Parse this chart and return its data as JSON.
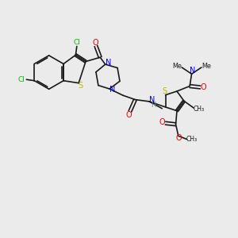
{
  "background_color": "#ebebeb",
  "bond_color": "#1a1a1a",
  "colors": {
    "N": "#0000ee",
    "O": "#ee0000",
    "S": "#bbbb00",
    "Cl": "#00bb00",
    "H": "#778877",
    "C": "#1a1a1a",
    "Me": "#1a1a1a"
  },
  "figsize": [
    3.0,
    3.0
  ],
  "dpi": 100
}
